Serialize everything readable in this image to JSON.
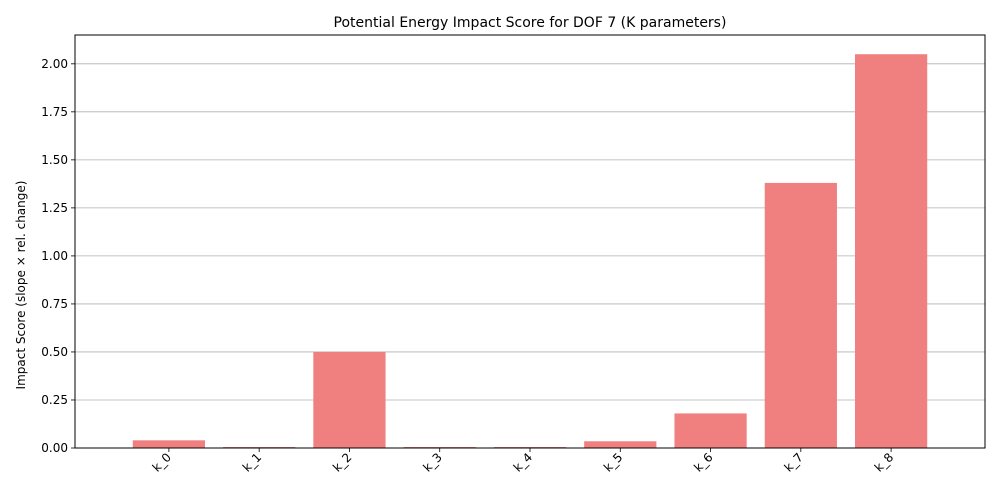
{
  "chart_data": {
    "type": "bar",
    "title": "Potential Energy Impact Score for DOF 7 (K parameters)",
    "xlabel": "",
    "ylabel": "Impact Score (slope × rel. change)",
    "categories": [
      "k_0",
      "k_1",
      "k_2",
      "k_3",
      "k_4",
      "k_5",
      "k_6",
      "k_7",
      "k_8"
    ],
    "values": [
      0.04,
      0.005,
      0.5,
      0.005,
      0.005,
      0.035,
      0.18,
      1.38,
      2.05
    ],
    "ylim": [
      0,
      2.15
    ],
    "yticks": [
      "0.00",
      "0.25",
      "0.50",
      "0.75",
      "1.00",
      "1.25",
      "1.50",
      "1.75",
      "2.00"
    ],
    "bar_color": "#f08080",
    "grid": "y",
    "legend": "none"
  }
}
